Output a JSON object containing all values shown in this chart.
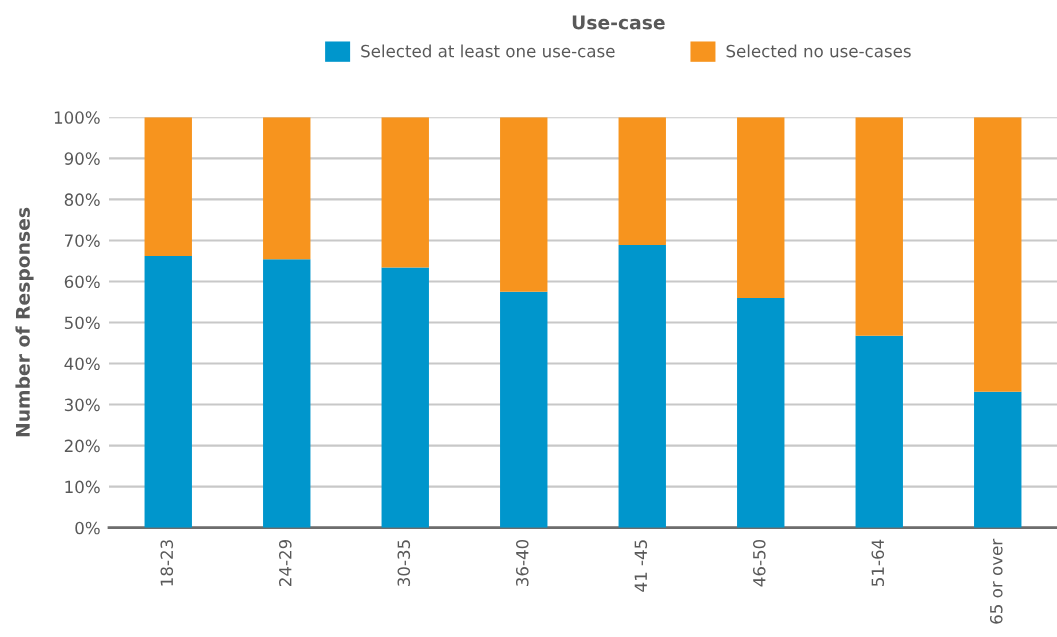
{
  "chart_data": {
    "type": "bar",
    "stacked": true,
    "legend_title": "Use-case",
    "ylabel": "Number of Responses",
    "categories": [
      "18-23",
      "24-29",
      "30-35",
      "36-40",
      "41 -45",
      "46-50",
      "51-64",
      "65 or over"
    ],
    "series": [
      {
        "name": "Selected at least one use-case",
        "color": "#0096cc",
        "values": [
          66.2,
          65.4,
          63.4,
          57.5,
          68.9,
          56.0,
          46.8,
          33.1
        ]
      },
      {
        "name": "Selected no use-cases",
        "color": "#f7941e",
        "values": [
          33.8,
          34.6,
          36.6,
          42.5,
          31.1,
          44.0,
          53.2,
          66.9
        ]
      }
    ],
    "ylim": [
      0,
      100
    ],
    "yticks": [
      {
        "value": 0,
        "label": "0%"
      },
      {
        "value": 10,
        "label": "10%"
      },
      {
        "value": 20,
        "label": "20%"
      },
      {
        "value": 30,
        "label": "30%"
      },
      {
        "value": 40,
        "label": "40%"
      },
      {
        "value": 50,
        "label": "50%"
      },
      {
        "value": 60,
        "label": "60%"
      },
      {
        "value": 70,
        "label": "70%"
      },
      {
        "value": 80,
        "label": "80%"
      },
      {
        "value": 90,
        "label": "90%"
      },
      {
        "value": 100,
        "label": "100%"
      }
    ],
    "grid": "y",
    "legend": "top"
  }
}
